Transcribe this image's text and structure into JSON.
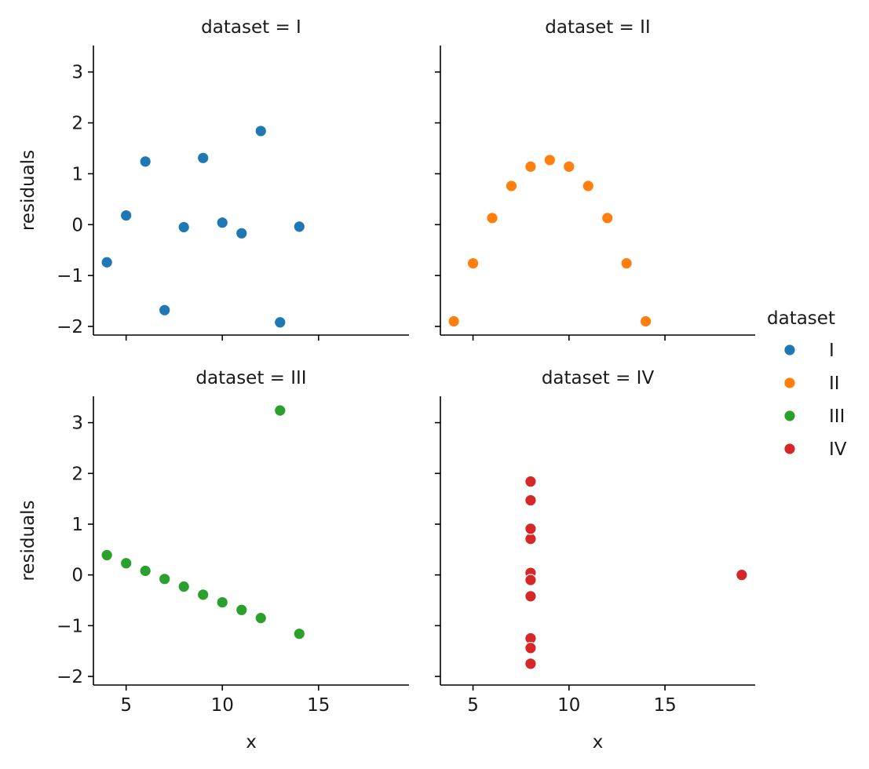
{
  "chart_data": {
    "type": "scatter",
    "xlabel": "x",
    "ylabel": "residuals",
    "xlim": [
      3.3,
      19.7
    ],
    "ylim": [
      -2.17,
      3.52
    ],
    "xticks": [
      5,
      10,
      15
    ],
    "yticks": [
      -2,
      -1,
      0,
      1,
      2,
      3
    ],
    "xtick_labels": [
      "5",
      "10",
      "15"
    ],
    "ytick_labels": [
      "−2",
      "−1",
      "0",
      "1",
      "2",
      "3"
    ],
    "grid": false,
    "legend": {
      "title": "dataset",
      "placement": "right",
      "entries": [
        {
          "label": "I",
          "color": "#1f77b4"
        },
        {
          "label": "II",
          "color": "#ff7f0e"
        },
        {
          "label": "III",
          "color": "#2ca02c"
        },
        {
          "label": "IV",
          "color": "#d62728"
        }
      ]
    },
    "facets": [
      {
        "title": "dataset = I",
        "name": "I",
        "color": "#1f77b4",
        "x": [
          10,
          8,
          13,
          9,
          11,
          14,
          6,
          4,
          12,
          7,
          5
        ],
        "y": [
          0.04,
          -0.05,
          -1.92,
          1.31,
          -0.17,
          -0.04,
          1.24,
          -0.74,
          1.84,
          -1.68,
          0.18
        ]
      },
      {
        "title": "dataset = II",
        "name": "II",
        "color": "#ff7f0e",
        "x": [
          10,
          8,
          13,
          9,
          11,
          14,
          6,
          4,
          12,
          7,
          5
        ],
        "y": [
          1.14,
          1.14,
          -0.76,
          1.27,
          0.76,
          -1.9,
          0.13,
          -1.9,
          0.13,
          0.76,
          -0.76
        ]
      },
      {
        "title": "dataset = III",
        "name": "III",
        "color": "#2ca02c",
        "x": [
          10,
          8,
          13,
          9,
          11,
          14,
          6,
          4,
          12,
          7,
          5
        ],
        "y": [
          -0.54,
          -0.23,
          3.24,
          -0.39,
          -0.69,
          -1.16,
          0.08,
          0.39,
          -0.85,
          -0.08,
          0.23
        ]
      },
      {
        "title": "dataset = IV",
        "name": "IV",
        "color": "#d62728",
        "x": [
          8,
          8,
          8,
          8,
          8,
          8,
          8,
          19,
          8,
          8,
          8
        ],
        "y": [
          -0.42,
          -1.25,
          0.71,
          1.84,
          0.04,
          -1.75,
          1.47,
          0.0,
          -1.44,
          0.91,
          -0.1
        ]
      }
    ]
  }
}
